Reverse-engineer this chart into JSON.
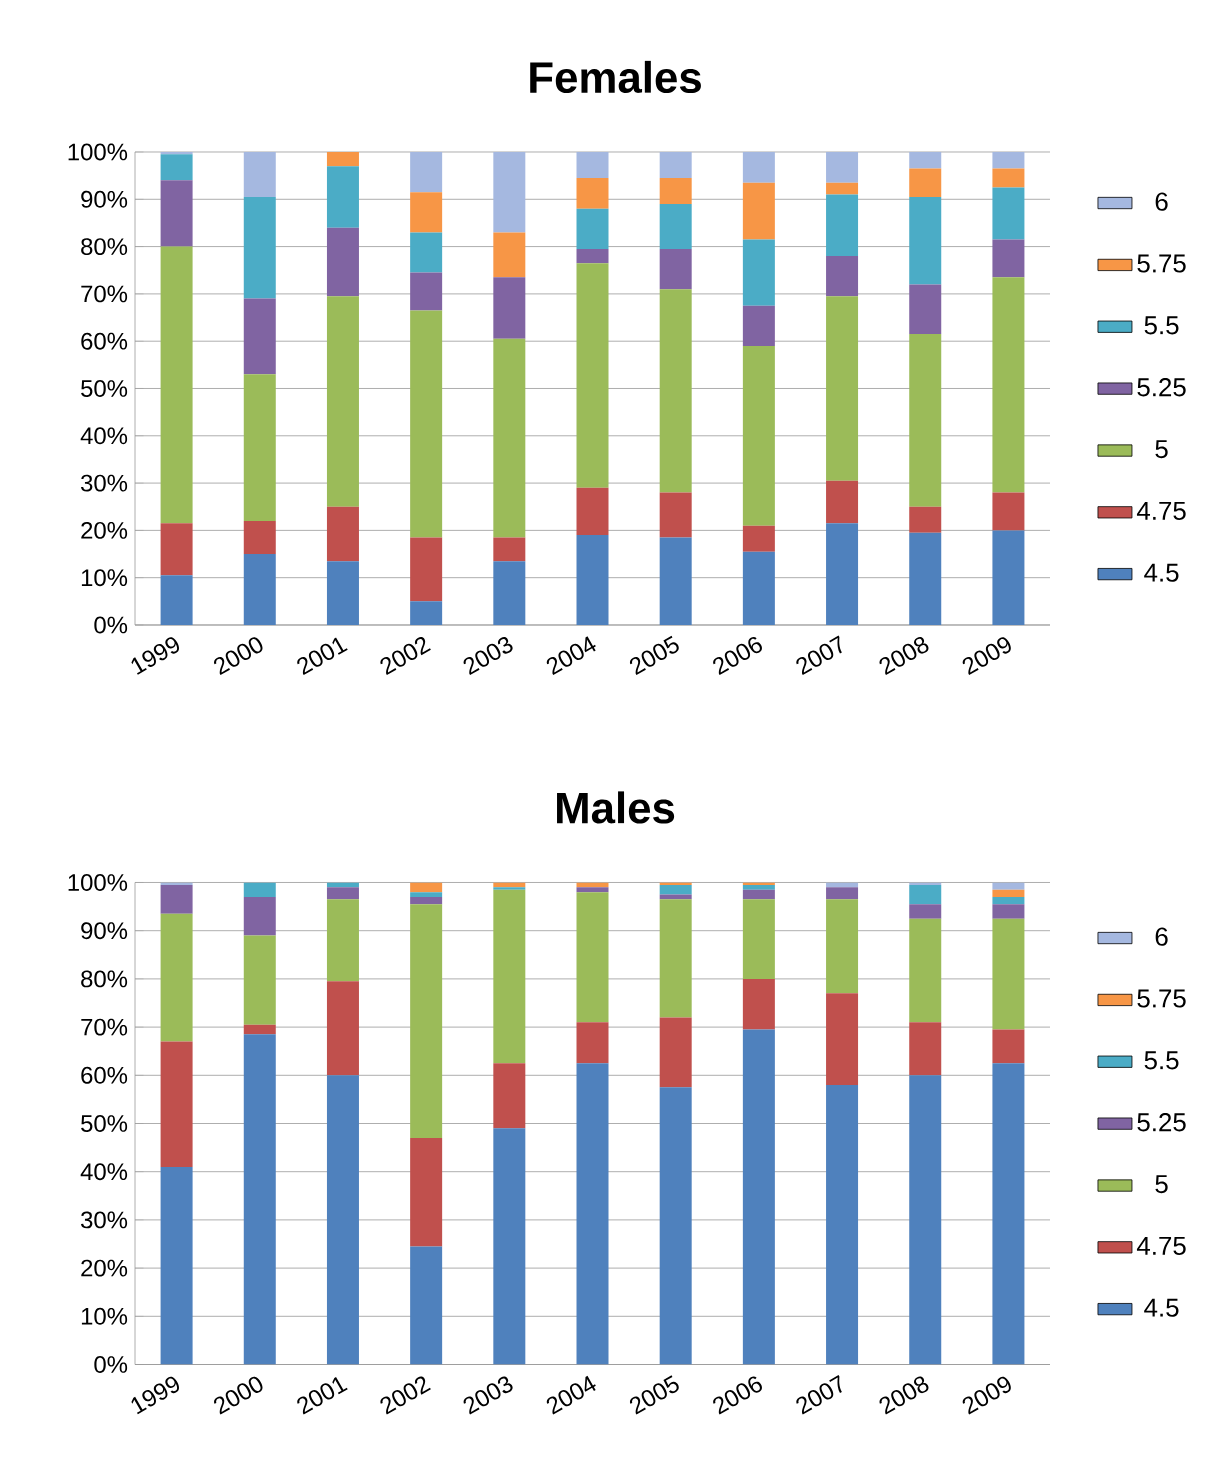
{
  "chart_data": [
    {
      "type": "bar",
      "title": "Females",
      "stacked": true,
      "grid": "y",
      "legend": "right",
      "categories": [
        "1999",
        "2000",
        "2001",
        "2002",
        "2003",
        "2004",
        "2005",
        "2006",
        "2007",
        "2008",
        "2009"
      ],
      "ylim": [
        0,
        100
      ],
      "yticks": [
        {
          "value": 0,
          "label": "0%"
        },
        {
          "value": 10,
          "label": "10%"
        },
        {
          "value": 20,
          "label": "20%"
        },
        {
          "value": 30,
          "label": "30%"
        },
        {
          "value": 40,
          "label": "40%"
        },
        {
          "value": 50,
          "label": "50%"
        },
        {
          "value": 60,
          "label": "60%"
        },
        {
          "value": 70,
          "label": "70%"
        },
        {
          "value": 80,
          "label": "80%"
        },
        {
          "value": 90,
          "label": "90%"
        },
        {
          "value": 100,
          "label": "100%"
        }
      ],
      "series": [
        {
          "name": "4.5",
          "color": "#4f81bd",
          "values": [
            10.5,
            15,
            13.5,
            5,
            13.5,
            19,
            18.5,
            15.5,
            21.5,
            19.5,
            20
          ]
        },
        {
          "name": "4.75",
          "color": "#c0504d",
          "values": [
            11,
            7,
            11.5,
            13.5,
            5,
            10,
            9.5,
            5.5,
            9,
            5.5,
            8
          ]
        },
        {
          "name": "5",
          "color": "#9bbb59",
          "values": [
            58.5,
            31,
            44.5,
            48,
            42,
            47.5,
            43,
            38,
            39,
            36.5,
            45.5
          ]
        },
        {
          "name": "5.25",
          "color": "#8064a2",
          "values": [
            14,
            16,
            14.5,
            8,
            13,
            3,
            8.5,
            8.5,
            8.5,
            10.5,
            8
          ]
        },
        {
          "name": "5.5",
          "color": "#4bacc6",
          "values": [
            5.5,
            21.5,
            13,
            8.5,
            0,
            8.5,
            9.5,
            14,
            13,
            18.5,
            11
          ]
        },
        {
          "name": "5.75",
          "color": "#f79646",
          "values": [
            0,
            0,
            3,
            8.5,
            9.5,
            6.5,
            5.5,
            12,
            2.5,
            6,
            4
          ]
        },
        {
          "name": "6",
          "color": "#a5b8e0",
          "values": [
            0.5,
            9.5,
            0,
            8.5,
            17,
            5.5,
            5.5,
            6.5,
            6.5,
            3.5,
            3.5
          ]
        }
      ]
    },
    {
      "type": "bar",
      "title": "Males",
      "stacked": true,
      "grid": "y",
      "legend": "right",
      "categories": [
        "1999",
        "2000",
        "2001",
        "2002",
        "2003",
        "2004",
        "2005",
        "2006",
        "2007",
        "2008",
        "2009"
      ],
      "ylim": [
        0,
        100
      ],
      "yticks": [
        {
          "value": 0,
          "label": "0%"
        },
        {
          "value": 10,
          "label": "10%"
        },
        {
          "value": 20,
          "label": "20%"
        },
        {
          "value": 30,
          "label": "30%"
        },
        {
          "value": 40,
          "label": "40%"
        },
        {
          "value": 50,
          "label": "50%"
        },
        {
          "value": 60,
          "label": "60%"
        },
        {
          "value": 70,
          "label": "70%"
        },
        {
          "value": 80,
          "label": "80%"
        },
        {
          "value": 90,
          "label": "90%"
        },
        {
          "value": 100,
          "label": "100%"
        }
      ],
      "series": [
        {
          "name": "4.5",
          "color": "#4f81bd",
          "values": [
            41,
            68.5,
            60,
            24.5,
            49,
            62.5,
            57.5,
            69.5,
            58,
            60,
            62.5
          ]
        },
        {
          "name": "4.75",
          "color": "#c0504d",
          "values": [
            26,
            2,
            19.5,
            22.5,
            13.5,
            8.5,
            14.5,
            10.5,
            19,
            11,
            7
          ]
        },
        {
          "name": "5",
          "color": "#9bbb59",
          "values": [
            26.5,
            18.5,
            17,
            48.5,
            36,
            27,
            24.5,
            16.5,
            19.5,
            21.5,
            23
          ]
        },
        {
          "name": "5.25",
          "color": "#8064a2",
          "values": [
            6,
            8,
            2.5,
            1.5,
            0,
            1,
            1,
            2,
            2.5,
            3,
            3
          ]
        },
        {
          "name": "5.5",
          "color": "#4bacc6",
          "values": [
            0,
            3,
            1,
            1,
            0.5,
            0,
            2,
            1,
            0,
            4,
            1.5
          ]
        },
        {
          "name": "5.75",
          "color": "#f79646",
          "values": [
            0,
            0,
            0,
            2,
            1,
            1,
            0.5,
            0.5,
            0,
            0,
            1.5
          ]
        },
        {
          "name": "6",
          "color": "#a5b8e0",
          "values": [
            0.5,
            0,
            0,
            0,
            0,
            0,
            0,
            0,
            1,
            0.5,
            1.5
          ]
        }
      ]
    }
  ]
}
